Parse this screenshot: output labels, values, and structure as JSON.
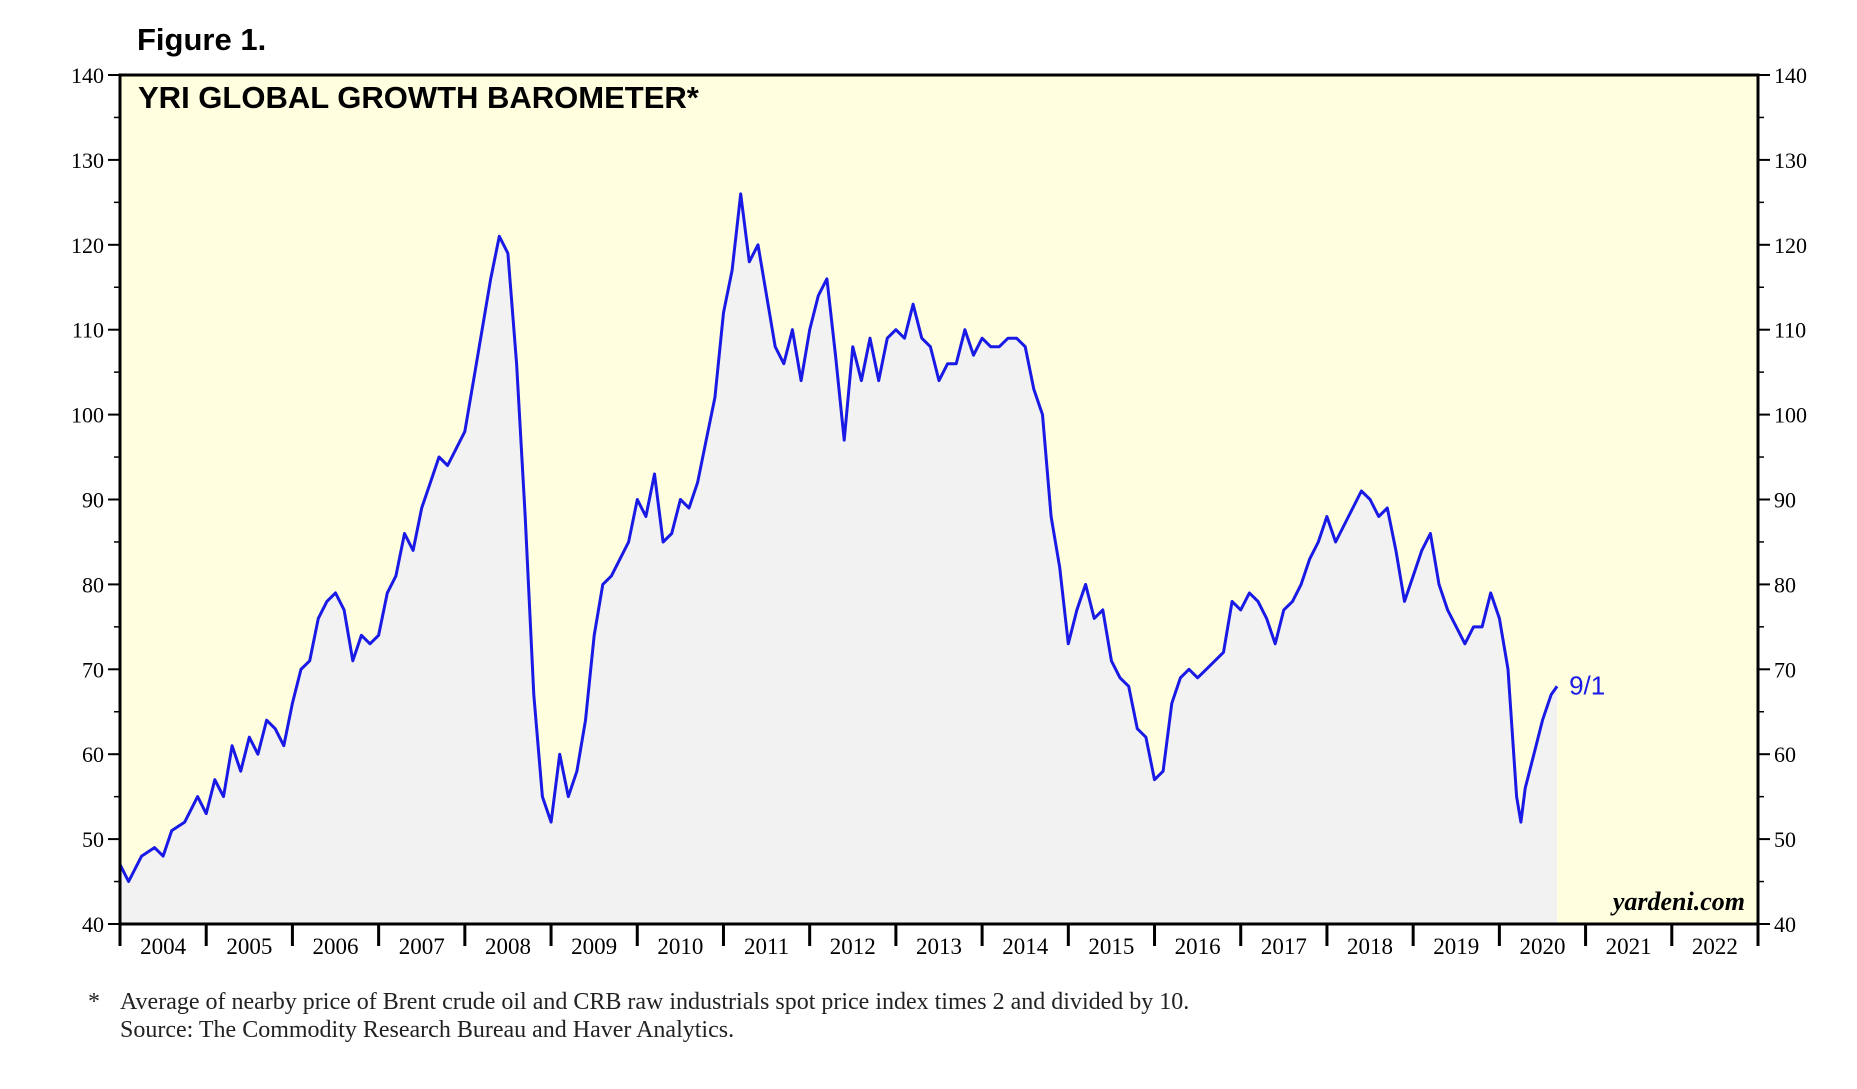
{
  "figure_label": "Figure 1.",
  "footnote": {
    "marker": "*",
    "line1": "Average of nearby price of Brent crude oil and CRB raw industrials spot price index times 2 and divided by 10.",
    "line2": "Source: The Commodity Research Bureau and Haver Analytics."
  },
  "colors": {
    "plot_bg": "#ffffe0",
    "area_fill": "#f2f2f2",
    "line": "#1a1ae6"
  },
  "chart_data": {
    "type": "line",
    "title": "YRI GLOBAL GROWTH BAROMETER*",
    "watermark": "yardeni.com",
    "last_label": "9/1",
    "xlim": [
      2004,
      2023
    ],
    "ylim": [
      40,
      140
    ],
    "y_ticks": [
      40,
      50,
      60,
      70,
      80,
      90,
      100,
      110,
      120,
      130,
      140
    ],
    "y_ticks_right": [
      40,
      50,
      60,
      70,
      80,
      90,
      100,
      110,
      120,
      130,
      140
    ],
    "x_tick_labels": [
      "2004",
      "2005",
      "2006",
      "2007",
      "2008",
      "2009",
      "2010",
      "2011",
      "2012",
      "2013",
      "2014",
      "2015",
      "2016",
      "2017",
      "2018",
      "2019",
      "2020",
      "2021",
      "2022"
    ],
    "series": [
      {
        "name": "YRI Global Growth Barometer",
        "x": [
          2004.0,
          2004.1,
          2004.25,
          2004.4,
          2004.5,
          2004.6,
          2004.75,
          2004.9,
          2005.0,
          2005.1,
          2005.2,
          2005.3,
          2005.4,
          2005.5,
          2005.6,
          2005.7,
          2005.8,
          2005.9,
          2006.0,
          2006.1,
          2006.2,
          2006.3,
          2006.4,
          2006.5,
          2006.6,
          2006.7,
          2006.8,
          2006.9,
          2007.0,
          2007.1,
          2007.2,
          2007.3,
          2007.4,
          2007.5,
          2007.6,
          2007.7,
          2007.8,
          2007.9,
          2008.0,
          2008.1,
          2008.2,
          2008.3,
          2008.4,
          2008.5,
          2008.6,
          2008.7,
          2008.8,
          2008.9,
          2009.0,
          2009.1,
          2009.2,
          2009.3,
          2009.4,
          2009.5,
          2009.6,
          2009.7,
          2009.8,
          2009.9,
          2010.0,
          2010.1,
          2010.2,
          2010.3,
          2010.4,
          2010.5,
          2010.6,
          2010.7,
          2010.8,
          2010.9,
          2011.0,
          2011.1,
          2011.2,
          2011.3,
          2011.4,
          2011.5,
          2011.6,
          2011.7,
          2011.8,
          2011.9,
          2012.0,
          2012.1,
          2012.2,
          2012.3,
          2012.4,
          2012.5,
          2012.6,
          2012.7,
          2012.8,
          2012.9,
          2013.0,
          2013.1,
          2013.2,
          2013.3,
          2013.4,
          2013.5,
          2013.6,
          2013.7,
          2013.8,
          2013.9,
          2014.0,
          2014.1,
          2014.2,
          2014.3,
          2014.4,
          2014.5,
          2014.6,
          2014.7,
          2014.8,
          2014.9,
          2015.0,
          2015.1,
          2015.2,
          2015.3,
          2015.4,
          2015.5,
          2015.6,
          2015.7,
          2015.8,
          2015.9,
          2016.0,
          2016.1,
          2016.2,
          2016.3,
          2016.4,
          2016.5,
          2016.6,
          2016.7,
          2016.8,
          2016.9,
          2017.0,
          2017.1,
          2017.2,
          2017.3,
          2017.4,
          2017.5,
          2017.6,
          2017.7,
          2017.8,
          2017.9,
          2018.0,
          2018.1,
          2018.2,
          2018.3,
          2018.4,
          2018.5,
          2018.6,
          2018.7,
          2018.8,
          2018.9,
          2019.0,
          2019.1,
          2019.2,
          2019.3,
          2019.4,
          2019.5,
          2019.6,
          2019.7,
          2019.8,
          2019.9,
          2020.0,
          2020.1,
          2020.2,
          2020.25,
          2020.3,
          2020.4,
          2020.5,
          2020.6,
          2020.67
        ],
        "values": [
          47,
          45,
          48,
          49,
          48,
          51,
          52,
          55,
          53,
          57,
          55,
          61,
          58,
          62,
          60,
          64,
          63,
          61,
          66,
          70,
          71,
          76,
          78,
          79,
          77,
          71,
          74,
          73,
          74,
          79,
          81,
          86,
          84,
          89,
          92,
          95,
          94,
          96,
          98,
          104,
          110,
          116,
          121,
          119,
          106,
          88,
          67,
          55,
          52,
          60,
          55,
          58,
          64,
          74,
          80,
          81,
          83,
          85,
          90,
          88,
          93,
          85,
          86,
          90,
          89,
          92,
          97,
          102,
          112,
          117,
          126,
          118,
          120,
          114,
          108,
          106,
          110,
          104,
          110,
          114,
          116,
          107,
          97,
          108,
          104,
          109,
          104,
          109,
          110,
          109,
          113,
          109,
          108,
          104,
          106,
          106,
          110,
          107,
          109,
          108,
          108,
          109,
          109,
          108,
          103,
          100,
          88,
          82,
          73,
          77,
          80,
          76,
          77,
          71,
          69,
          68,
          63,
          62,
          57,
          58,
          66,
          69,
          70,
          69,
          70,
          71,
          72,
          78,
          77,
          79,
          78,
          76,
          73,
          77,
          78,
          80,
          83,
          85,
          88,
          85,
          87,
          89,
          91,
          90,
          88,
          89,
          84,
          78,
          81,
          84,
          86,
          80,
          77,
          75,
          73,
          75,
          75,
          79,
          76,
          70,
          55,
          52,
          56,
          60,
          64,
          67,
          68
        ]
      }
    ]
  }
}
